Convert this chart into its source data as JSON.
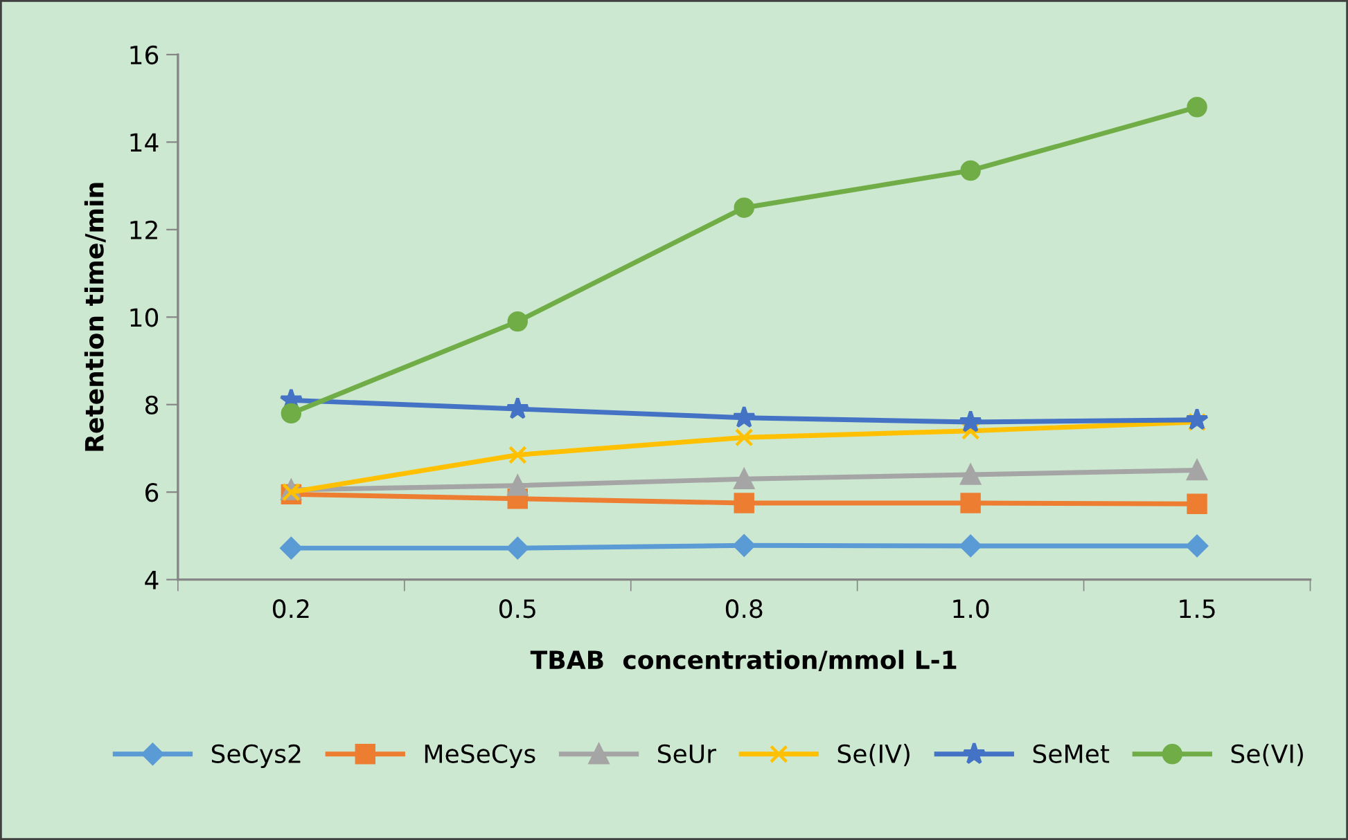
{
  "chart_data": {
    "type": "line",
    "xlabel": "TBAB  concentration/mmol L-1",
    "ylabel": "Retention time/min",
    "categories": [
      "0.2",
      "0.5",
      "0.8",
      "1.0",
      "1.5"
    ],
    "ylim": [
      4,
      16
    ],
    "yticks": [
      4,
      6,
      8,
      10,
      12,
      14,
      16
    ],
    "grid": false,
    "legend": "bottom",
    "line_style": "solid",
    "series": [
      {
        "name": "SeCys2",
        "color": "#5b9bd5",
        "marker": "diamond",
        "values": [
          4.72,
          4.72,
          4.78,
          4.77,
          4.77
        ]
      },
      {
        "name": "MeSeCys",
        "color": "#ed7d31",
        "marker": "square",
        "values": [
          5.95,
          5.85,
          5.75,
          5.75,
          5.73
        ]
      },
      {
        "name": "SeUr",
        "color": "#a5a5a5",
        "marker": "triangle",
        "values": [
          6.05,
          6.15,
          6.3,
          6.4,
          6.5
        ]
      },
      {
        "name": "Se(IV)",
        "color": "#ffc000",
        "marker": "cross",
        "values": [
          6.0,
          6.85,
          7.25,
          7.4,
          7.6
        ]
      },
      {
        "name": "SeMet",
        "color": "#4472c4",
        "marker": "star",
        "values": [
          8.1,
          7.9,
          7.7,
          7.6,
          7.65
        ]
      },
      {
        "name": "Se(VI)",
        "color": "#70ad47",
        "marker": "circle",
        "values": [
          7.8,
          9.9,
          12.5,
          13.35,
          14.8
        ]
      }
    ]
  }
}
